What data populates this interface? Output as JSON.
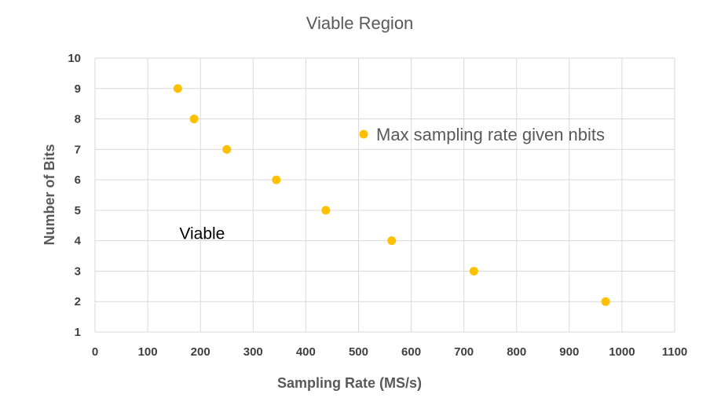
{
  "chart_data": {
    "type": "scatter",
    "title": "Viable Region",
    "xlabel": "Sampling Rate (MS/s)",
    "ylabel": "Number of Bits",
    "xlim": [
      0,
      1100
    ],
    "ylim": [
      1,
      10
    ],
    "x_ticks": [
      0,
      100,
      200,
      300,
      400,
      500,
      600,
      700,
      800,
      900,
      1000,
      1100
    ],
    "y_ticks": [
      1,
      2,
      3,
      4,
      5,
      6,
      7,
      8,
      9,
      10
    ],
    "grid": true,
    "legend_position": "right",
    "series": [
      {
        "name": "Max sampling rate given nbits",
        "color": "#FFC000",
        "points": [
          {
            "x": 157,
            "y": 9
          },
          {
            "x": 188,
            "y": 8
          },
          {
            "x": 250,
            "y": 7
          },
          {
            "x": 344,
            "y": 6
          },
          {
            "x": 438,
            "y": 5
          },
          {
            "x": 563,
            "y": 4
          },
          {
            "x": 719,
            "y": 3
          },
          {
            "x": 969,
            "y": 2
          }
        ]
      }
    ],
    "annotations": [
      {
        "text": "Viable",
        "x": 160,
        "y": 4.05
      }
    ]
  }
}
